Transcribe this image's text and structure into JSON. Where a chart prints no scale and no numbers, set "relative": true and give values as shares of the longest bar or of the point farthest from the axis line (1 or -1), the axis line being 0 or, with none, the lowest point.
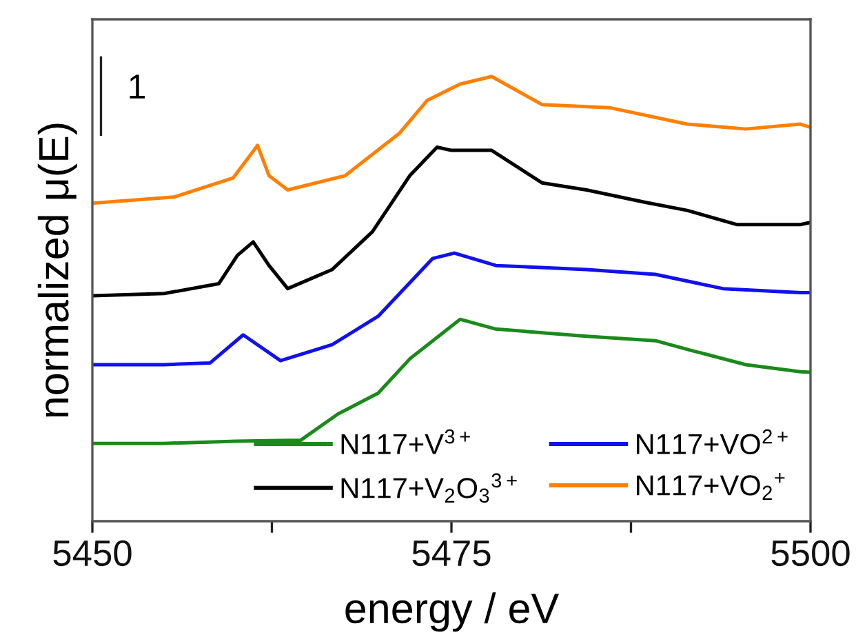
{
  "chart_data": {
    "type": "line",
    "xlabel": "energy / eV",
    "ylabel": "normalized μ(E)",
    "relative": true,
    "xlim": [
      5450,
      5500
    ],
    "xticks": [
      5450,
      {
        "value": 5462.5,
        "label": null
      },
      5475,
      {
        "value": 5487.5,
        "label": null
      },
      5500
    ],
    "annotations": [
      "1"
    ],
    "legend": "bottom right",
    "grid": false,
    "line_style": "solid",
    "marker": "none",
    "series": [
      {
        "name": "N117+V$^{3+}$",
        "color": "#1a8a1a",
        "x": [
          5450,
          5455,
          5460,
          5464.5,
          5467.1,
          5469.9,
          5472.1,
          5475.6,
          5478.1,
          5484.4,
          5489.2,
          5491.7,
          5495.5,
          5499.3,
          5500
        ],
        "values": [
          0.175,
          0.175,
          0.18,
          0.182,
          0.241,
          0.288,
          0.365,
          0.454,
          0.432,
          0.416,
          0.406,
          0.384,
          0.352,
          0.336,
          0.335
        ]
      },
      {
        "name": "N117+V$_{2}$O$_{3}$$^{3+}$",
        "color": "#000000",
        "x": [
          5450,
          5455,
          5458.8,
          5460.1,
          5461.2,
          5462.3,
          5463.6,
          5466.7,
          5469.5,
          5472.1,
          5474.0,
          5475.0,
          5477.8,
          5481.3,
          5484.4,
          5488.5,
          5491.4,
          5494.9,
          5499.3,
          5500
        ],
        "values": [
          0.507,
          0.512,
          0.534,
          0.598,
          0.628,
          0.575,
          0.523,
          0.566,
          0.651,
          0.777,
          0.841,
          0.834,
          0.834,
          0.761,
          0.745,
          0.717,
          0.699,
          0.667,
          0.667,
          0.672
        ]
      },
      {
        "name": "N117+VO$^{2+}$",
        "color": "#1010f0",
        "x": [
          5450,
          5455,
          5458.2,
          5460.5,
          5463.1,
          5466.7,
          5469.9,
          5473.7,
          5475.2,
          5478.1,
          5484.4,
          5489.2,
          5493.9,
          5499.3,
          5500
        ],
        "values": [
          0.352,
          0.352,
          0.356,
          0.419,
          0.361,
          0.397,
          0.461,
          0.591,
          0.603,
          0.575,
          0.566,
          0.555,
          0.523,
          0.514,
          0.514
        ]
      },
      {
        "name": "N117+VO$_{2}$$^{+}$",
        "color": "#ff8000",
        "x": [
          5450,
          5455.7,
          5459.8,
          5461.5,
          5462.3,
          5463.6,
          5467.6,
          5471.4,
          5473.3,
          5475.6,
          5477.8,
          5481.3,
          5486.0,
          5491.4,
          5495.5,
          5499.3,
          5500
        ],
        "values": [
          0.715,
          0.729,
          0.772,
          0.845,
          0.777,
          0.745,
          0.777,
          0.873,
          0.946,
          0.983,
          1.0,
          0.937,
          0.93,
          0.893,
          0.882,
          0.893,
          0.886
        ]
      }
    ]
  }
}
